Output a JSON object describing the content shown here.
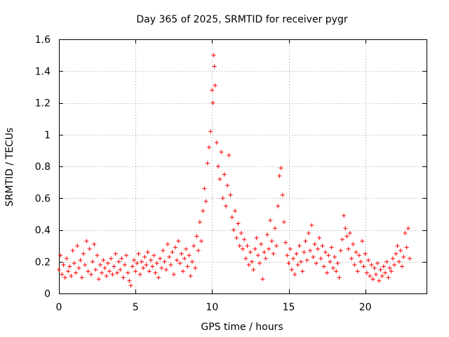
{
  "chart_data": {
    "type": "scatter",
    "title": "Day 365 of 2025, SRMTID for receiver pygr",
    "xlabel": "GPS time / hours",
    "ylabel": "SRMTID / TECUs",
    "xlim": [
      0,
      24
    ],
    "ylim": [
      0,
      1.6
    ],
    "xticks": [
      0,
      5,
      10,
      15,
      20
    ],
    "yticks": [
      0,
      0.2,
      0.4,
      0.6,
      0.8,
      1,
      1.2,
      1.4,
      1.6
    ],
    "xtick_labels": [
      "0",
      "5",
      "10",
      "15",
      "20"
    ],
    "ytick_labels": [
      "0",
      "0.2",
      "0.4",
      "0.6",
      "0.8",
      "1",
      "1.2",
      "1.4",
      "1.6"
    ],
    "grid": true,
    "marker": "+",
    "color": "#ff0000",
    "series": [
      {
        "name": "SRMTID",
        "points": [
          [
            0.0,
            0.15
          ],
          [
            0.1,
            0.24
          ],
          [
            0.2,
            0.12
          ],
          [
            0.3,
            0.18
          ],
          [
            0.4,
            0.1
          ],
          [
            0.5,
            0.22
          ],
          [
            0.6,
            0.14
          ],
          [
            0.7,
            0.17
          ],
          [
            0.8,
            0.11
          ],
          [
            0.9,
            0.27
          ],
          [
            1.0,
            0.19
          ],
          [
            1.1,
            0.13
          ],
          [
            1.2,
            0.3
          ],
          [
            1.3,
            0.16
          ],
          [
            1.4,
            0.21
          ],
          [
            1.5,
            0.1
          ],
          [
            1.6,
            0.25
          ],
          [
            1.7,
            0.18
          ],
          [
            1.8,
            0.33
          ],
          [
            1.9,
            0.14
          ],
          [
            2.0,
            0.28
          ],
          [
            2.1,
            0.12
          ],
          [
            2.2,
            0.2
          ],
          [
            2.3,
            0.31
          ],
          [
            2.4,
            0.15
          ],
          [
            2.5,
            0.24
          ],
          [
            2.6,
            0.09
          ],
          [
            2.7,
            0.18
          ],
          [
            2.8,
            0.13
          ],
          [
            2.9,
            0.21
          ],
          [
            3.0,
            0.16
          ],
          [
            3.1,
            0.11
          ],
          [
            3.2,
            0.19
          ],
          [
            3.3,
            0.14
          ],
          [
            3.4,
            0.22
          ],
          [
            3.5,
            0.12
          ],
          [
            3.6,
            0.17
          ],
          [
            3.7,
            0.25
          ],
          [
            3.8,
            0.13
          ],
          [
            3.9,
            0.2
          ],
          [
            4.0,
            0.15
          ],
          [
            4.1,
            0.22
          ],
          [
            4.2,
            0.1
          ],
          [
            4.3,
            0.18
          ],
          [
            4.4,
            0.24
          ],
          [
            4.5,
            0.13
          ],
          [
            4.6,
            0.08
          ],
          [
            4.7,
            0.05
          ],
          [
            4.8,
            0.17
          ],
          [
            4.9,
            0.21
          ],
          [
            5.0,
            0.14
          ],
          [
            5.1,
            0.19
          ],
          [
            5.2,
            0.25
          ],
          [
            5.3,
            0.12
          ],
          [
            5.4,
            0.2
          ],
          [
            5.5,
            0.16
          ],
          [
            5.6,
            0.23
          ],
          [
            5.7,
            0.18
          ],
          [
            5.8,
            0.26
          ],
          [
            5.9,
            0.14
          ],
          [
            6.0,
            0.21
          ],
          [
            6.1,
            0.17
          ],
          [
            6.2,
            0.24
          ],
          [
            6.3,
            0.13
          ],
          [
            6.4,
            0.19
          ],
          [
            6.5,
            0.1
          ],
          [
            6.6,
            0.22
          ],
          [
            6.7,
            0.16
          ],
          [
            6.8,
            0.27
          ],
          [
            6.9,
            0.2
          ],
          [
            7.0,
            0.15
          ],
          [
            7.1,
            0.31
          ],
          [
            7.2,
            0.23
          ],
          [
            7.3,
            0.18
          ],
          [
            7.4,
            0.26
          ],
          [
            7.5,
            0.12
          ],
          [
            7.6,
            0.29
          ],
          [
            7.7,
            0.21
          ],
          [
            7.8,
            0.33
          ],
          [
            7.9,
            0.19
          ],
          [
            8.0,
            0.25
          ],
          [
            8.1,
            0.14
          ],
          [
            8.2,
            0.22
          ],
          [
            8.3,
            0.28
          ],
          [
            8.4,
            0.17
          ],
          [
            8.5,
            0.24
          ],
          [
            8.6,
            0.11
          ],
          [
            8.7,
            0.2
          ],
          [
            8.8,
            0.3
          ],
          [
            8.9,
            0.16
          ],
          [
            9.0,
            0.36
          ],
          [
            9.1,
            0.27
          ],
          [
            9.2,
            0.45
          ],
          [
            9.3,
            0.33
          ],
          [
            9.4,
            0.52
          ],
          [
            9.5,
            0.66
          ],
          [
            9.6,
            0.58
          ],
          [
            9.7,
            0.82
          ],
          [
            9.8,
            0.92
          ],
          [
            9.9,
            1.02
          ],
          [
            10.0,
            1.28
          ],
          [
            10.05,
            1.2
          ],
          [
            10.1,
            1.5
          ],
          [
            10.15,
            1.43
          ],
          [
            10.2,
            1.31
          ],
          [
            10.3,
            0.95
          ],
          [
            10.4,
            0.8
          ],
          [
            10.5,
            0.72
          ],
          [
            10.6,
            0.89
          ],
          [
            10.7,
            0.6
          ],
          [
            10.8,
            0.75
          ],
          [
            10.9,
            0.55
          ],
          [
            11.0,
            0.68
          ],
          [
            11.1,
            0.87
          ],
          [
            11.2,
            0.62
          ],
          [
            11.3,
            0.48
          ],
          [
            11.4,
            0.4
          ],
          [
            11.5,
            0.52
          ],
          [
            11.6,
            0.35
          ],
          [
            11.7,
            0.44
          ],
          [
            11.8,
            0.3
          ],
          [
            11.9,
            0.38
          ],
          [
            12.0,
            0.28
          ],
          [
            12.1,
            0.34
          ],
          [
            12.2,
            0.22
          ],
          [
            12.3,
            0.3
          ],
          [
            12.4,
            0.18
          ],
          [
            12.5,
            0.26
          ],
          [
            12.6,
            0.2
          ],
          [
            12.7,
            0.15
          ],
          [
            12.8,
            0.28
          ],
          [
            12.9,
            0.35
          ],
          [
            13.0,
            0.24
          ],
          [
            13.1,
            0.19
          ],
          [
            13.2,
            0.31
          ],
          [
            13.3,
            0.09
          ],
          [
            13.4,
            0.26
          ],
          [
            13.5,
            0.22
          ],
          [
            13.6,
            0.37
          ],
          [
            13.7,
            0.28
          ],
          [
            13.8,
            0.46
          ],
          [
            13.9,
            0.33
          ],
          [
            14.0,
            0.25
          ],
          [
            14.1,
            0.41
          ],
          [
            14.2,
            0.3
          ],
          [
            14.3,
            0.55
          ],
          [
            14.4,
            0.74
          ],
          [
            14.5,
            0.79
          ],
          [
            14.6,
            0.62
          ],
          [
            14.7,
            0.45
          ],
          [
            14.8,
            0.32
          ],
          [
            14.9,
            0.24
          ],
          [
            15.0,
            0.19
          ],
          [
            15.1,
            0.28
          ],
          [
            15.2,
            0.15
          ],
          [
            15.3,
            0.22
          ],
          [
            15.4,
            0.12
          ],
          [
            15.5,
            0.25
          ],
          [
            15.6,
            0.18
          ],
          [
            15.7,
            0.3
          ],
          [
            15.8,
            0.2
          ],
          [
            15.9,
            0.14
          ],
          [
            16.0,
            0.26
          ],
          [
            16.1,
            0.33
          ],
          [
            16.2,
            0.21
          ],
          [
            16.3,
            0.38
          ],
          [
            16.4,
            0.27
          ],
          [
            16.5,
            0.43
          ],
          [
            16.6,
            0.23
          ],
          [
            16.7,
            0.31
          ],
          [
            16.8,
            0.19
          ],
          [
            16.9,
            0.28
          ],
          [
            17.0,
            0.35
          ],
          [
            17.1,
            0.22
          ],
          [
            17.2,
            0.3
          ],
          [
            17.3,
            0.17
          ],
          [
            17.4,
            0.26
          ],
          [
            17.5,
            0.13
          ],
          [
            17.6,
            0.24
          ],
          [
            17.7,
            0.2
          ],
          [
            17.8,
            0.29
          ],
          [
            17.9,
            0.16
          ],
          [
            18.0,
            0.23
          ],
          [
            18.1,
            0.14
          ],
          [
            18.2,
            0.19
          ],
          [
            18.3,
            0.1
          ],
          [
            18.4,
            0.27
          ],
          [
            18.5,
            0.34
          ],
          [
            18.6,
            0.49
          ],
          [
            18.7,
            0.41
          ],
          [
            18.8,
            0.36
          ],
          [
            18.9,
            0.28
          ],
          [
            19.0,
            0.38
          ],
          [
            19.1,
            0.22
          ],
          [
            19.2,
            0.31
          ],
          [
            19.3,
            0.18
          ],
          [
            19.4,
            0.26
          ],
          [
            19.5,
            0.14
          ],
          [
            19.6,
            0.24
          ],
          [
            19.7,
            0.2
          ],
          [
            19.8,
            0.33
          ],
          [
            19.9,
            0.17
          ],
          [
            20.0,
            0.25
          ],
          [
            20.1,
            0.13
          ],
          [
            20.2,
            0.21
          ],
          [
            20.3,
            0.11
          ],
          [
            20.4,
            0.18
          ],
          [
            20.5,
            0.09
          ],
          [
            20.6,
            0.16
          ],
          [
            20.7,
            0.12
          ],
          [
            20.8,
            0.19
          ],
          [
            20.9,
            0.08
          ],
          [
            21.0,
            0.15
          ],
          [
            21.1,
            0.11
          ],
          [
            21.2,
            0.17
          ],
          [
            21.3,
            0.13
          ],
          [
            21.4,
            0.2
          ],
          [
            21.5,
            0.1
          ],
          [
            21.6,
            0.16
          ],
          [
            21.7,
            0.14
          ],
          [
            21.8,
            0.22
          ],
          [
            21.9,
            0.18
          ],
          [
            22.0,
            0.25
          ],
          [
            22.1,
            0.3
          ],
          [
            22.2,
            0.2
          ],
          [
            22.3,
            0.27
          ],
          [
            22.4,
            0.17
          ],
          [
            22.5,
            0.23
          ],
          [
            22.6,
            0.38
          ],
          [
            22.7,
            0.29
          ],
          [
            22.8,
            0.41
          ],
          [
            22.9,
            0.22
          ]
        ]
      }
    ]
  }
}
